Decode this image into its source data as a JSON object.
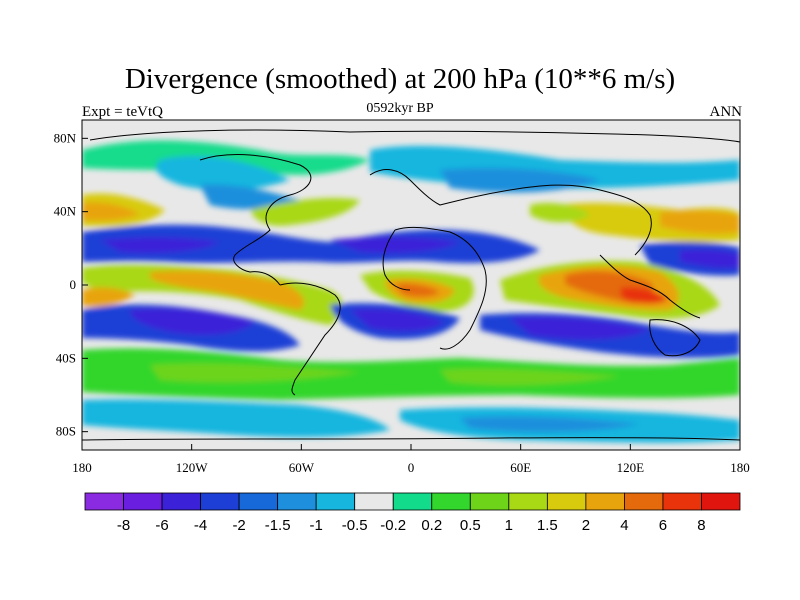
{
  "title": "Divergence (smoothed) at 200 hPa (10**6 m/s)",
  "left_label": "Expt = teVtQ",
  "center_label": "0592kyr BP",
  "right_label": "ANN",
  "map": {
    "projection": "cylindrical equidistant",
    "lon_range": [
      -180,
      180
    ],
    "lat_range": [
      -90,
      90
    ],
    "x_tick_labels": [
      "180",
      "120W",
      "60W",
      "0",
      "60E",
      "120E",
      "180"
    ],
    "y_tick_labels": [
      "80N",
      "40N",
      "0",
      "40S",
      "80S"
    ],
    "ocean_land_fill": "#e8e8e8",
    "coastline_color": "#000000"
  },
  "colorbar": {
    "labels": [
      "-8",
      "-6",
      "-4",
      "-2",
      "-1.5",
      "-1",
      "-0.5",
      "-0.2",
      "0.2",
      "0.5",
      "1",
      "1.5",
      "2",
      "4",
      "6",
      "8"
    ],
    "colors": [
      "#8a2be2",
      "#6a1fe0",
      "#3b21d8",
      "#1d3fd6",
      "#1768d9",
      "#1d8fdc",
      "#17b6df",
      "#e8e8e8",
      "#12dc8c",
      "#33d62c",
      "#6dd41a",
      "#a9d815",
      "#d8cb0d",
      "#e8a40c",
      "#e46a0c",
      "#e8330b",
      "#e0160e"
    ]
  },
  "legend_values": [
    "-8",
    "-6",
    "-4",
    "-2",
    "-1.5",
    "-1",
    "-0.5",
    "-0.2",
    "0.2",
    "0.5",
    "1",
    "1.5",
    "2",
    "4",
    "6",
    "8"
  ]
}
